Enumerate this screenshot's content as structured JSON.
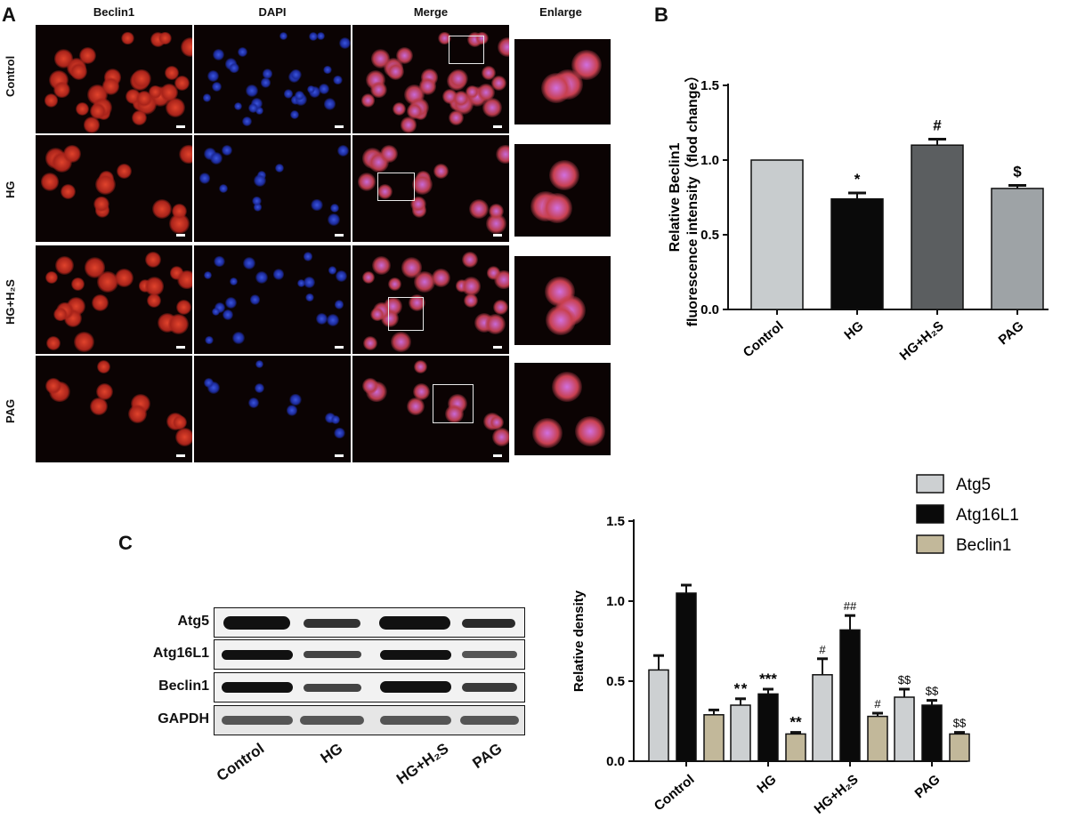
{
  "panel_a": {
    "label": "A",
    "columns": [
      "Beclin1",
      "DAPI",
      "Merge",
      "Enlarge"
    ],
    "rows": [
      "Control",
      "HG",
      "HG+H₂S",
      "PAG"
    ]
  },
  "panel_b": {
    "label": "B"
  },
  "panel_c": {
    "label": "C",
    "blot_rows": [
      "Atg5",
      "Atg16L1",
      "Beclin1",
      "GAPDH"
    ],
    "blot_columns": [
      "Control",
      "HG",
      "HG+H₂S",
      "PAG"
    ]
  },
  "colors": {
    "control_bar": "#c8ccce",
    "hg_bar": "#0a0a0a",
    "h2s_bar": "#5b5e60",
    "pag_bar": "#9ea3a6",
    "atg5": "#cdd0d2",
    "atg16l1": "#0a0a0a",
    "beclin1": "#c2b89a"
  },
  "chart_data": [
    {
      "type": "bar",
      "categories": [
        "Control",
        "HG",
        "HG+H₂S",
        "PAG"
      ],
      "values": [
        1.0,
        0.74,
        1.1,
        0.81
      ],
      "errors": [
        0.0,
        0.04,
        0.04,
        0.02
      ],
      "annotations": [
        "",
        "*",
        "#",
        "$"
      ],
      "ylabel_lines": [
        "Relative Beclin1",
        "fluorescence intensity（flod change）"
      ],
      "ylim": [
        0,
        1.5
      ],
      "yticks": [
        "0.0",
        "0.5",
        "1.0",
        "1.5"
      ]
    },
    {
      "type": "bar",
      "categories": [
        "Control",
        "HG",
        "HG+H₂S",
        "PAG"
      ],
      "series": [
        {
          "name": "Atg5",
          "values": [
            0.57,
            0.35,
            0.54,
            0.4
          ],
          "errors": [
            0.09,
            0.04,
            0.1,
            0.05
          ],
          "annotations": [
            "",
            "* *",
            "#",
            "$$"
          ]
        },
        {
          "name": "Atg16L1",
          "values": [
            1.05,
            0.42,
            0.82,
            0.35
          ],
          "errors": [
            0.05,
            0.03,
            0.09,
            0.03
          ],
          "annotations": [
            "",
            "***",
            "##",
            "$$"
          ]
        },
        {
          "name": "Beclin1",
          "values": [
            0.29,
            0.17,
            0.28,
            0.17
          ],
          "errors": [
            0.03,
            0.01,
            0.02,
            0.01
          ],
          "annotations": [
            "",
            "**",
            "#",
            "$$"
          ]
        }
      ],
      "ylabel": "Relative density",
      "ylim": [
        0,
        1.5
      ],
      "yticks": [
        "0.0",
        "0.5",
        "1.0",
        "1.5"
      ],
      "legend_position": "top-right"
    }
  ]
}
